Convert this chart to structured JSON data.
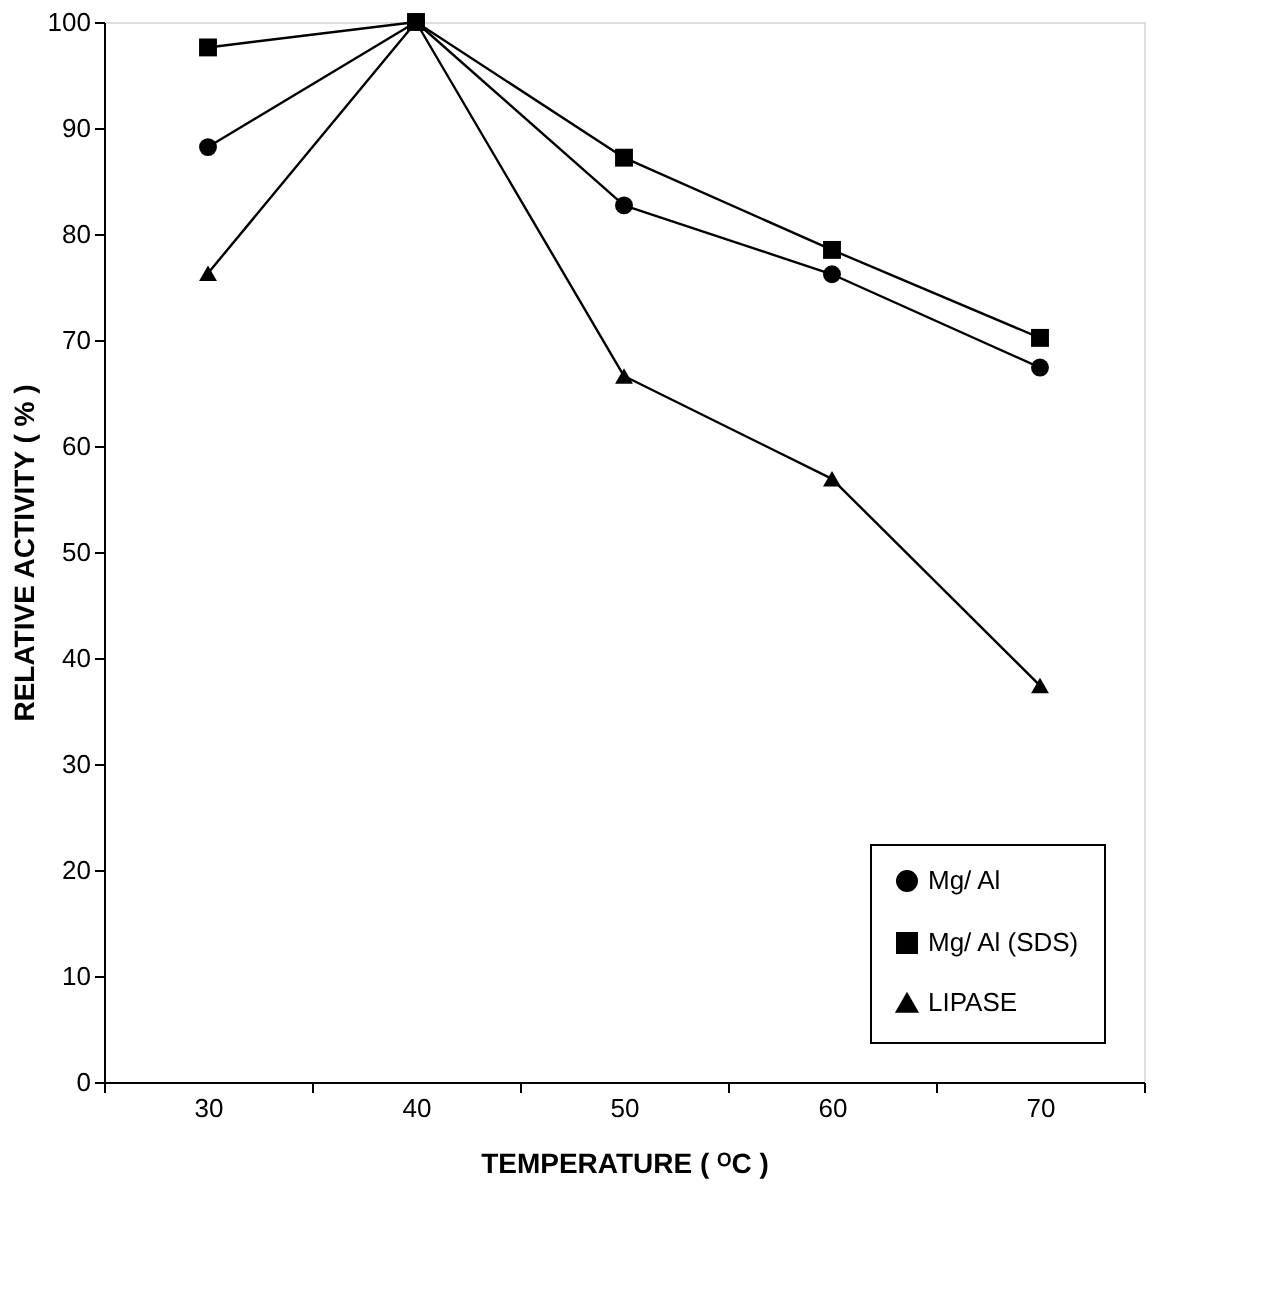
{
  "chart_data": {
    "type": "line",
    "xlabel": "TEMPERATURE ( ᴼC )",
    "ylabel": "RELATIVE ACTIVITY ( % )",
    "categories": [
      "30",
      "40",
      "50",
      "60",
      "70"
    ],
    "series": [
      {
        "name": "Mg/ Al",
        "color": "#000000",
        "marker": "circle",
        "values": [
          88.2,
          100,
          82.7,
          76.2,
          67.4
        ]
      },
      {
        "name": "Mg/ Al (SDS)",
        "color": "#000000",
        "marker": "square",
        "values": [
          97.6,
          100,
          87.2,
          78.5,
          70.2
        ]
      },
      {
        "name": "LIPASE",
        "color": "#000000",
        "marker": "triangle",
        "values": [
          76.3,
          100,
          66.6,
          56.9,
          37.4
        ]
      }
    ],
    "ylim": [
      0,
      100
    ],
    "yticks": [
      0,
      10,
      20,
      30,
      40,
      50,
      60,
      70,
      80,
      90,
      100
    ],
    "grid": false,
    "legend": "bottom right",
    "line_style": "solid"
  }
}
